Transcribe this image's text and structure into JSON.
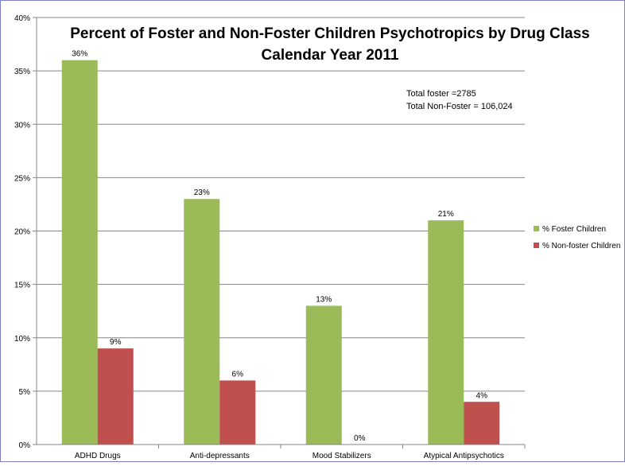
{
  "chart_data": {
    "type": "bar",
    "title": "Percent of Foster and Non-Foster Children Psychotropics by Drug Class",
    "subtitle": "Calendar Year 2011",
    "categories": [
      "ADHD Drugs",
      "Anti-depressants",
      "Mood Stabilizers",
      "Atypical Antipsychotics"
    ],
    "series": [
      {
        "name": "% Foster Children",
        "values": [
          36,
          23,
          13,
          21
        ],
        "labels": [
          "36%",
          "23%",
          "13%",
          "21%"
        ],
        "color": "#9bbb59"
      },
      {
        "name": "% Non-foster Children",
        "values": [
          9,
          6,
          0,
          4
        ],
        "labels": [
          "9%",
          "6%",
          "0%",
          "4%"
        ],
        "color": "#c0504d"
      }
    ],
    "yticks": [
      "0%",
      "5%",
      "10%",
      "15%",
      "20%",
      "25%",
      "30%",
      "35%",
      "40%"
    ],
    "ylim": [
      0,
      40
    ],
    "grid": true,
    "legend_position": "right",
    "annotations": [
      "Total foster =2785",
      "Total Non-Foster = 106,024"
    ],
    "frame_color": "#7f7fbf"
  }
}
